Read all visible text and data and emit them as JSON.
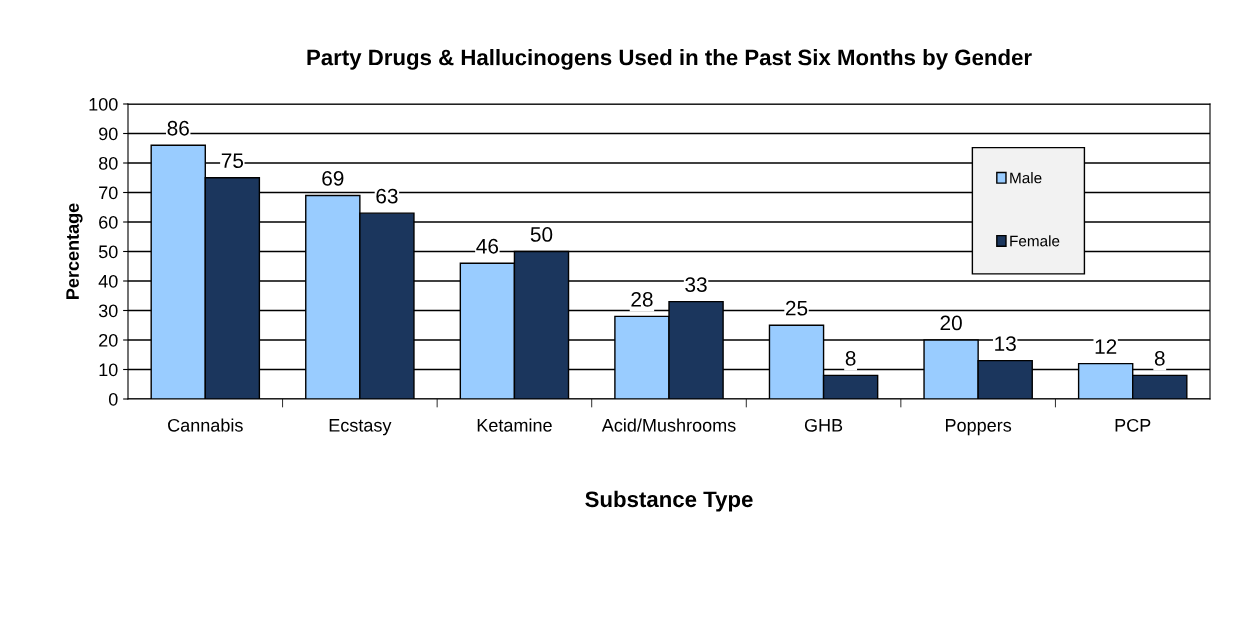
{
  "chart_data": {
    "type": "bar",
    "title": "Party Drugs & Hallucinogens Used in the Past Six Months by Gender",
    "xlabel": "Substance Type",
    "ylabel": "Percentage",
    "categories": [
      "Cannabis",
      "Ecstasy",
      "Ketamine",
      "Acid/Mushrooms",
      "GHB",
      "Poppers",
      "PCP"
    ],
    "series": [
      {
        "name": "Male",
        "color": "#99ccff",
        "values": [
          86,
          69,
          46,
          28,
          25,
          20,
          12
        ]
      },
      {
        "name": "Female",
        "color": "#1b365d",
        "values": [
          75,
          63,
          50,
          33,
          8,
          13,
          8
        ]
      }
    ],
    "ylim": [
      0,
      100
    ],
    "yticks": [
      0,
      10,
      20,
      30,
      40,
      50,
      60,
      70,
      80,
      90,
      100
    ],
    "grid": "y",
    "legend": "top right",
    "data_labels": true
  }
}
